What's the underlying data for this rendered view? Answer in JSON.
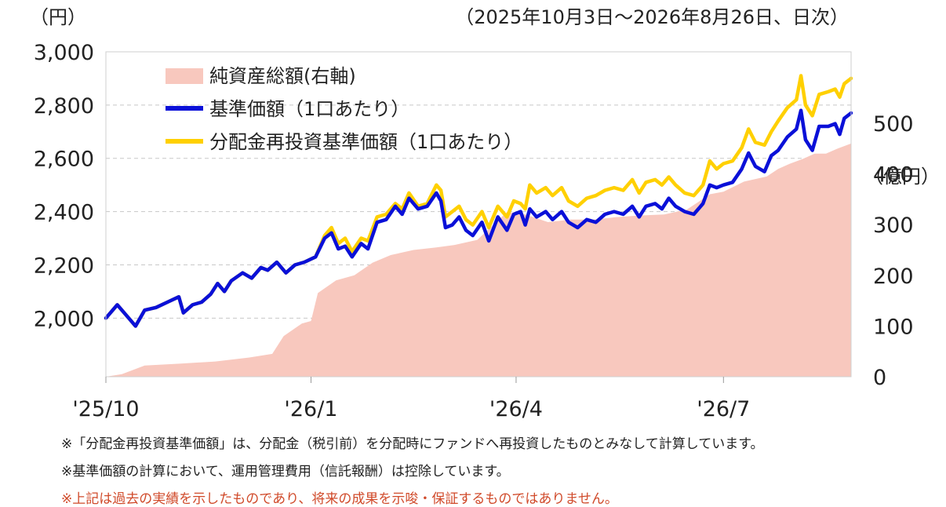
{
  "chart_data": {
    "type": "line",
    "period": "（2025年10月3日～2026年8月26日、日次）",
    "left_axis_unit": "（円）",
    "right_axis_unit": "（億円）",
    "ylim_left": [
      1780,
      3000
    ],
    "yticks_left": [
      "3,000",
      "2,800",
      "2,600",
      "2,400",
      "2,200",
      "2,000"
    ],
    "ylim_right": [
      0,
      500
    ],
    "yticks_right": [
      "500",
      "400",
      "300",
      "200",
      "100",
      "0"
    ],
    "xlim": [
      "2025-10-03",
      "2026-08-26"
    ],
    "xticks": [
      {
        "date": "2025-10-01",
        "label": "'25/10"
      },
      {
        "date": "2026-01-01",
        "label": "'26/1"
      },
      {
        "date": "2026-04-01",
        "label": "'26/4"
      },
      {
        "date": "2026-07-01",
        "label": "'26/7"
      }
    ],
    "grid": true,
    "legend_position": "top-left",
    "series": [
      {
        "name": "純資産総額(右軸)",
        "type": "area",
        "axis": "right",
        "color": "#f8c8be",
        "points": [
          [
            "2025-10-03",
            0
          ],
          [
            "2025-10-10",
            5
          ],
          [
            "2025-10-20",
            22
          ],
          [
            "2025-11-05",
            26
          ],
          [
            "2025-11-20",
            30
          ],
          [
            "2025-12-05",
            38
          ],
          [
            "2025-12-15",
            45
          ],
          [
            "2025-12-20",
            80
          ],
          [
            "2025-12-28",
            105
          ],
          [
            "2026-01-01",
            110
          ],
          [
            "2026-01-04",
            165
          ],
          [
            "2026-01-12",
            190
          ],
          [
            "2026-01-20",
            200
          ],
          [
            "2026-01-28",
            225
          ],
          [
            "2026-02-05",
            240
          ],
          [
            "2026-02-15",
            250
          ],
          [
            "2026-02-25",
            255
          ],
          [
            "2026-03-05",
            260
          ],
          [
            "2026-03-15",
            270
          ],
          [
            "2026-03-28",
            325
          ],
          [
            "2026-04-05",
            320
          ],
          [
            "2026-04-15",
            305
          ],
          [
            "2026-04-25",
            310
          ],
          [
            "2026-05-05",
            310
          ],
          [
            "2026-05-15",
            315
          ],
          [
            "2026-05-25",
            318
          ],
          [
            "2026-06-05",
            320
          ],
          [
            "2026-06-15",
            330
          ],
          [
            "2026-06-20",
            345
          ],
          [
            "2026-06-25",
            360
          ],
          [
            "2026-07-01",
            365
          ],
          [
            "2026-07-10",
            385
          ],
          [
            "2026-07-20",
            395
          ],
          [
            "2026-07-25",
            410
          ],
          [
            "2026-07-30",
            420
          ],
          [
            "2026-08-05",
            430
          ],
          [
            "2026-08-10",
            440
          ],
          [
            "2026-08-15",
            440
          ],
          [
            "2026-08-20",
            450
          ],
          [
            "2026-08-26",
            460
          ]
        ]
      },
      {
        "name": "基準価額（1口あたり）",
        "type": "line",
        "axis": "left",
        "color": "#0a10d8",
        "points": [
          [
            "2025-10-03",
            2000
          ],
          [
            "2025-10-08",
            2050
          ],
          [
            "2025-10-13",
            2000
          ],
          [
            "2025-10-16",
            1970
          ],
          [
            "2025-10-20",
            2030
          ],
          [
            "2025-10-25",
            2040
          ],
          [
            "2025-10-30",
            2060
          ],
          [
            "2025-11-04",
            2080
          ],
          [
            "2025-11-06",
            2020
          ],
          [
            "2025-11-10",
            2050
          ],
          [
            "2025-11-14",
            2060
          ],
          [
            "2025-11-18",
            2090
          ],
          [
            "2025-11-21",
            2130
          ],
          [
            "2025-11-24",
            2100
          ],
          [
            "2025-11-27",
            2140
          ],
          [
            "2025-12-02",
            2170
          ],
          [
            "2025-12-06",
            2150
          ],
          [
            "2025-12-10",
            2190
          ],
          [
            "2025-12-13",
            2180
          ],
          [
            "2025-12-17",
            2210
          ],
          [
            "2025-12-21",
            2170
          ],
          [
            "2025-12-25",
            2200
          ],
          [
            "2025-12-29",
            2210
          ],
          [
            "2026-01-03",
            2230
          ],
          [
            "2026-01-07",
            2300
          ],
          [
            "2026-01-10",
            2320
          ],
          [
            "2026-01-13",
            2260
          ],
          [
            "2026-01-16",
            2270
          ],
          [
            "2026-01-19",
            2230
          ],
          [
            "2026-01-23",
            2280
          ],
          [
            "2026-01-26",
            2260
          ],
          [
            "2026-01-30",
            2360
          ],
          [
            "2026-02-03",
            2370
          ],
          [
            "2026-02-07",
            2420
          ],
          [
            "2026-02-10",
            2390
          ],
          [
            "2026-02-13",
            2450
          ],
          [
            "2026-02-17",
            2410
          ],
          [
            "2026-02-21",
            2420
          ],
          [
            "2026-02-25",
            2470
          ],
          [
            "2026-02-27",
            2440
          ],
          [
            "2026-03-01",
            2340
          ],
          [
            "2026-03-04",
            2350
          ],
          [
            "2026-03-07",
            2380
          ],
          [
            "2026-03-10",
            2330
          ],
          [
            "2026-03-13",
            2310
          ],
          [
            "2026-03-17",
            2360
          ],
          [
            "2026-03-20",
            2290
          ],
          [
            "2026-03-24",
            2380
          ],
          [
            "2026-03-28",
            2330
          ],
          [
            "2026-03-31",
            2390
          ],
          [
            "2026-04-03",
            2400
          ],
          [
            "2026-04-05",
            2350
          ],
          [
            "2026-04-07",
            2410
          ],
          [
            "2026-04-10",
            2380
          ],
          [
            "2026-04-14",
            2400
          ],
          [
            "2026-04-17",
            2370
          ],
          [
            "2026-04-21",
            2400
          ],
          [
            "2026-04-24",
            2360
          ],
          [
            "2026-04-28",
            2340
          ],
          [
            "2026-05-02",
            2370
          ],
          [
            "2026-05-06",
            2360
          ],
          [
            "2026-05-10",
            2390
          ],
          [
            "2026-05-14",
            2400
          ],
          [
            "2026-05-18",
            2390
          ],
          [
            "2026-05-22",
            2420
          ],
          [
            "2026-05-25",
            2380
          ],
          [
            "2026-05-28",
            2420
          ],
          [
            "2026-06-01",
            2430
          ],
          [
            "2026-06-04",
            2410
          ],
          [
            "2026-06-07",
            2450
          ],
          [
            "2026-06-10",
            2420
          ],
          [
            "2026-06-14",
            2400
          ],
          [
            "2026-06-18",
            2390
          ],
          [
            "2026-06-22",
            2430
          ],
          [
            "2026-06-25",
            2500
          ],
          [
            "2026-06-28",
            2490
          ],
          [
            "2026-07-01",
            2500
          ],
          [
            "2026-07-05",
            2510
          ],
          [
            "2026-07-09",
            2560
          ],
          [
            "2026-07-12",
            2620
          ],
          [
            "2026-07-15",
            2570
          ],
          [
            "2026-07-19",
            2550
          ],
          [
            "2026-07-22",
            2610
          ],
          [
            "2026-07-25",
            2630
          ],
          [
            "2026-07-29",
            2680
          ],
          [
            "2026-08-02",
            2710
          ],
          [
            "2026-08-04",
            2780
          ],
          [
            "2026-08-06",
            2670
          ],
          [
            "2026-08-09",
            2630
          ],
          [
            "2026-08-12",
            2720
          ],
          [
            "2026-08-16",
            2720
          ],
          [
            "2026-08-19",
            2730
          ],
          [
            "2026-08-21",
            2690
          ],
          [
            "2026-08-23",
            2750
          ],
          [
            "2026-08-26",
            2770
          ]
        ]
      },
      {
        "name": "分配金再投資基準価額（1口あたり）",
        "type": "line",
        "axis": "left",
        "color": "#ffd000",
        "points": [
          [
            "2025-10-03",
            2000
          ],
          [
            "2025-10-08",
            2050
          ],
          [
            "2025-10-13",
            2000
          ],
          [
            "2025-10-16",
            1970
          ],
          [
            "2025-10-20",
            2030
          ],
          [
            "2025-10-25",
            2040
          ],
          [
            "2025-10-30",
            2060
          ],
          [
            "2025-11-04",
            2080
          ],
          [
            "2025-11-06",
            2020
          ],
          [
            "2025-11-10",
            2050
          ],
          [
            "2025-11-14",
            2060
          ],
          [
            "2025-11-18",
            2090
          ],
          [
            "2025-11-21",
            2130
          ],
          [
            "2025-11-24",
            2100
          ],
          [
            "2025-11-27",
            2140
          ],
          [
            "2025-12-02",
            2170
          ],
          [
            "2025-12-06",
            2150
          ],
          [
            "2025-12-10",
            2190
          ],
          [
            "2025-12-13",
            2180
          ],
          [
            "2025-12-17",
            2210
          ],
          [
            "2025-12-21",
            2170
          ],
          [
            "2025-12-25",
            2200
          ],
          [
            "2025-12-29",
            2210
          ],
          [
            "2026-01-03",
            2230
          ],
          [
            "2026-01-07",
            2310
          ],
          [
            "2026-01-10",
            2340
          ],
          [
            "2026-01-13",
            2280
          ],
          [
            "2026-01-16",
            2300
          ],
          [
            "2026-01-19",
            2250
          ],
          [
            "2026-01-23",
            2300
          ],
          [
            "2026-01-26",
            2290
          ],
          [
            "2026-01-30",
            2380
          ],
          [
            "2026-02-03",
            2390
          ],
          [
            "2026-02-07",
            2430
          ],
          [
            "2026-02-10",
            2410
          ],
          [
            "2026-02-13",
            2470
          ],
          [
            "2026-02-17",
            2420
          ],
          [
            "2026-02-21",
            2430
          ],
          [
            "2026-02-25",
            2500
          ],
          [
            "2026-02-27",
            2480
          ],
          [
            "2026-03-01",
            2380
          ],
          [
            "2026-03-04",
            2400
          ],
          [
            "2026-03-07",
            2420
          ],
          [
            "2026-03-10",
            2370
          ],
          [
            "2026-03-13",
            2350
          ],
          [
            "2026-03-17",
            2400
          ],
          [
            "2026-03-20",
            2340
          ],
          [
            "2026-03-24",
            2420
          ],
          [
            "2026-03-28",
            2380
          ],
          [
            "2026-03-31",
            2440
          ],
          [
            "2026-04-03",
            2430
          ],
          [
            "2026-04-05",
            2410
          ],
          [
            "2026-04-07",
            2500
          ],
          [
            "2026-04-10",
            2470
          ],
          [
            "2026-04-14",
            2490
          ],
          [
            "2026-04-17",
            2460
          ],
          [
            "2026-04-21",
            2490
          ],
          [
            "2026-04-24",
            2440
          ],
          [
            "2026-04-28",
            2420
          ],
          [
            "2026-05-02",
            2450
          ],
          [
            "2026-05-06",
            2460
          ],
          [
            "2026-05-10",
            2480
          ],
          [
            "2026-05-14",
            2490
          ],
          [
            "2026-05-18",
            2480
          ],
          [
            "2026-05-22",
            2520
          ],
          [
            "2026-05-25",
            2470
          ],
          [
            "2026-05-28",
            2510
          ],
          [
            "2026-06-01",
            2520
          ],
          [
            "2026-06-04",
            2500
          ],
          [
            "2026-06-07",
            2530
          ],
          [
            "2026-06-10",
            2500
          ],
          [
            "2026-06-14",
            2470
          ],
          [
            "2026-06-18",
            2460
          ],
          [
            "2026-06-22",
            2500
          ],
          [
            "2026-06-25",
            2590
          ],
          [
            "2026-06-28",
            2560
          ],
          [
            "2026-07-01",
            2580
          ],
          [
            "2026-07-05",
            2590
          ],
          [
            "2026-07-09",
            2640
          ],
          [
            "2026-07-12",
            2710
          ],
          [
            "2026-07-15",
            2660
          ],
          [
            "2026-07-19",
            2650
          ],
          [
            "2026-07-22",
            2700
          ],
          [
            "2026-07-25",
            2740
          ],
          [
            "2026-07-29",
            2790
          ],
          [
            "2026-08-02",
            2820
          ],
          [
            "2026-08-04",
            2910
          ],
          [
            "2026-08-06",
            2800
          ],
          [
            "2026-08-09",
            2760
          ],
          [
            "2026-08-12",
            2840
          ],
          [
            "2026-08-16",
            2850
          ],
          [
            "2026-08-19",
            2860
          ],
          [
            "2026-08-21",
            2830
          ],
          [
            "2026-08-23",
            2880
          ],
          [
            "2026-08-26",
            2900
          ]
        ]
      }
    ]
  },
  "notes": [
    {
      "text": "※「分配金再投資基準価額」は、分配金（税引前）を分配時にファンドへ再投資したものとみなして計算しています。",
      "color": "#222222"
    },
    {
      "text": "※基準価額の計算において、運用管理費用（信託報酬）は控除しています。",
      "color": "#222222"
    },
    {
      "text": "※上記は過去の実績を示したものであり、将来の成果を示唆・保証するものではありません。",
      "color": "#d04a2a"
    }
  ]
}
